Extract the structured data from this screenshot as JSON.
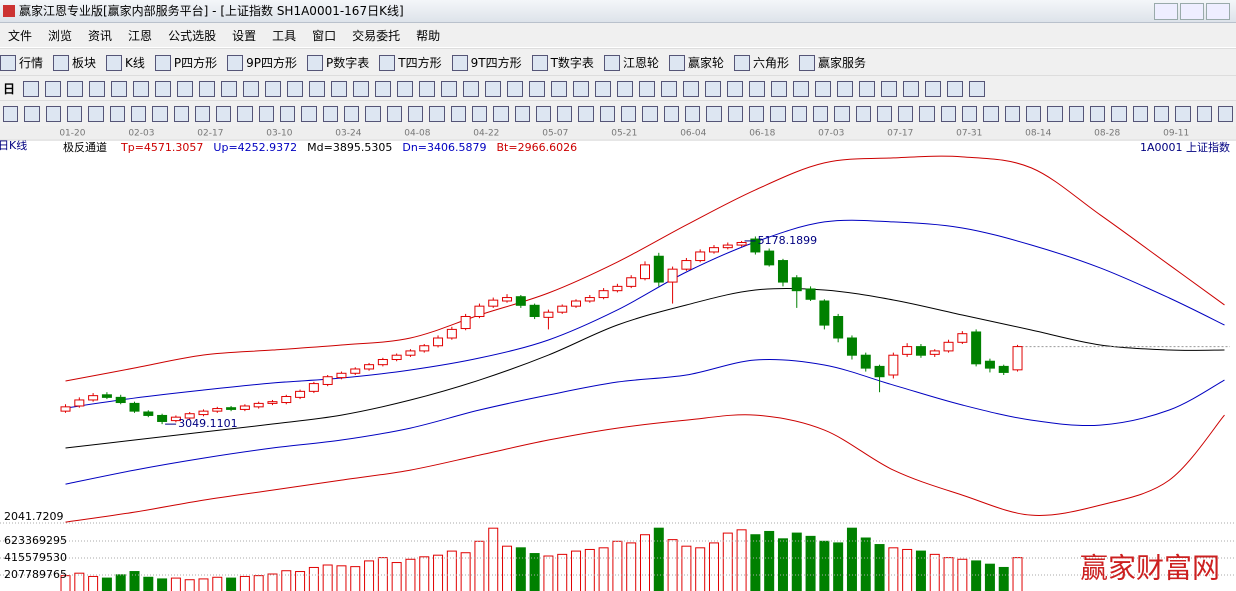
{
  "window": {
    "title": "赢家江恩专业版[赢家内部服务平台] - [上证指数  SH1A0001-167日K线]"
  },
  "menu": [
    "文件",
    "浏览",
    "资讯",
    "江恩",
    "公式选股",
    "设置",
    "工具",
    "窗口",
    "交易委托",
    "帮助"
  ],
  "toolbar": [
    "行情",
    "板块",
    "K线",
    "P四方形",
    "9P四方形",
    "P数字表",
    "T四方形",
    "9T四方形",
    "T数字表",
    "江恩轮",
    "赢家轮",
    "六角形",
    "赢家服务"
  ],
  "period_button": "日",
  "watermark": "赢家财富网",
  "chart_data": {
    "type": "candlestick",
    "period_label": "日K线",
    "indicator": "极反通道",
    "security": "1A0001  上证指数",
    "xlim": [
      -0.4,
      84.4
    ],
    "xticks": [
      {
        "value": 0.5,
        "label": "01-20"
      },
      {
        "value": 5.5,
        "label": "02-03"
      },
      {
        "value": 10.5,
        "label": "02-17"
      },
      {
        "value": 15.5,
        "label": "03-10"
      },
      {
        "value": 20.5,
        "label": "03-24"
      },
      {
        "value": 25.5,
        "label": "04-08"
      },
      {
        "value": 30.5,
        "label": "04-22"
      },
      {
        "value": 35.5,
        "label": "05-07"
      },
      {
        "value": 40.5,
        "label": "05-21"
      },
      {
        "value": 45.5,
        "label": "06-04"
      },
      {
        "value": 50.5,
        "label": "06-18"
      },
      {
        "value": 55.5,
        "label": "07-03"
      },
      {
        "value": 60.5,
        "label": "07-17"
      },
      {
        "value": 65.5,
        "label": "07-31"
      },
      {
        "value": 70.5,
        "label": "08-14"
      },
      {
        "value": 75.5,
        "label": "08-28"
      },
      {
        "value": 80.5,
        "label": "09-11"
      }
    ],
    "ylim": [
      1900,
      6200
    ],
    "up_color": "#e00000",
    "down_color": "#008000",
    "candles": {
      "open": [
        3200,
        3260,
        3330,
        3390,
        3360,
        3290,
        3190,
        3150,
        3090,
        3120,
        3160,
        3200,
        3240,
        3220,
        3250,
        3290,
        3300,
        3360,
        3430,
        3510,
        3590,
        3640,
        3690,
        3740,
        3800,
        3850,
        3900,
        3960,
        4050,
        4160,
        4300,
        4420,
        4480,
        4530,
        4430,
        4290,
        4350,
        4420,
        4480,
        4520,
        4600,
        4650,
        4740,
        5000,
        4700,
        4850,
        4950,
        5050,
        5100,
        5130,
        5200,
        5060,
        4950,
        4750,
        4620,
        4480,
        4300,
        4050,
        3850,
        3720,
        3620,
        3860,
        3950,
        3860,
        3900,
        4000,
        4120,
        3780,
        3720,
        3680
      ],
      "high": [
        3280,
        3360,
        3410,
        3420,
        3390,
        3310,
        3210,
        3170,
        3150,
        3190,
        3220,
        3250,
        3260,
        3280,
        3310,
        3330,
        3390,
        3450,
        3540,
        3620,
        3660,
        3710,
        3760,
        3820,
        3870,
        3920,
        3980,
        4080,
        4180,
        4330,
        4450,
        4520,
        4560,
        4550,
        4450,
        4380,
        4440,
        4500,
        4550,
        4630,
        4680,
        4780,
        4940,
        5040,
        4880,
        4980,
        5080,
        5130,
        5160,
        5178,
        5230,
        5090,
        4970,
        4780,
        4650,
        4500,
        4330,
        4080,
        3880,
        3740,
        3880,
        3990,
        3980,
        3920,
        4030,
        4130,
        4150,
        3810,
        3740,
        3970
      ],
      "low": [
        3180,
        3240,
        3310,
        3340,
        3280,
        3180,
        3130,
        3049,
        3070,
        3100,
        3140,
        3180,
        3200,
        3200,
        3230,
        3270,
        3280,
        3340,
        3410,
        3490,
        3570,
        3620,
        3670,
        3720,
        3780,
        3830,
        3880,
        3940,
        4030,
        4140,
        4280,
        4400,
        4460,
        4400,
        4270,
        4150,
        4330,
        4400,
        4460,
        4500,
        4580,
        4630,
        4720,
        4650,
        4450,
        4830,
        4930,
        5030,
        5080,
        5110,
        5020,
        4880,
        4650,
        4400,
        4480,
        4150,
        4000,
        3800,
        3660,
        3420,
        3580,
        3830,
        3820,
        3830,
        3880,
        3980,
        3720,
        3650,
        3620,
        3660
      ],
      "close": [
        3250,
        3330,
        3380,
        3360,
        3300,
        3200,
        3150,
        3080,
        3130,
        3170,
        3200,
        3230,
        3220,
        3260,
        3290,
        3310,
        3370,
        3430,
        3520,
        3600,
        3640,
        3690,
        3740,
        3800,
        3850,
        3900,
        3960,
        4050,
        4150,
        4300,
        4420,
        4490,
        4520,
        4430,
        4300,
        4350,
        4420,
        4480,
        4520,
        4600,
        4650,
        4750,
        4900,
        4700,
        4850,
        4950,
        5050,
        5100,
        5130,
        5160,
        5050,
        4900,
        4700,
        4600,
        4500,
        4200,
        4050,
        3850,
        3700,
        3600,
        3850,
        3950,
        3850,
        3900,
        4000,
        4100,
        3750,
        3700,
        3650,
        3950
      ]
    },
    "annotations": [
      {
        "x": 49,
        "value": 5178.1899
      },
      {
        "x": 7,
        "value": 3049.1101
      }
    ],
    "band_x": [
      0,
      5,
      10,
      15,
      20,
      25,
      30,
      35,
      40,
      45,
      50,
      55,
      60,
      65,
      70,
      75,
      80,
      84
    ],
    "series": [
      {
        "label": "Tp=4571.3057",
        "color": "#cc0000",
        "values": [
          3550,
          3701,
          3852,
          3910,
          3968,
          4050,
          4317,
          4573,
          4933,
          5364,
          5771,
          6085,
          6143,
          6155,
          6027,
          5480,
          4899,
          4434
        ]
      },
      {
        "label": "Up=4252.9372",
        "color": "#0000c0",
        "values": [
          3236,
          3352,
          3445,
          3527,
          3585,
          3678,
          3817,
          4027,
          4376,
          4817,
          5166,
          5399,
          5399,
          5329,
          5131,
          4864,
          4515,
          4201
        ]
      },
      {
        "label": "Md=3895.5305",
        "color": "#000000",
        "values": [
          2771,
          2864,
          2957,
          3050,
          3154,
          3329,
          3561,
          3852,
          4201,
          4434,
          4608,
          4608,
          4492,
          4317,
          4143,
          3969,
          3910,
          3910
        ]
      },
      {
        "label": "Dn=3406.5879",
        "color": "#0000c0",
        "values": [
          2352,
          2515,
          2654,
          2771,
          2864,
          3003,
          3213,
          3387,
          3538,
          3620,
          3794,
          3736,
          3503,
          3271,
          3096,
          3038,
          3213,
          3561
        ]
      },
      {
        "label": "Bt=2966.6026",
        "color": "#cc0000",
        "values": [
          1910,
          2026,
          2166,
          2282,
          2398,
          2515,
          2689,
          2864,
          3003,
          3096,
          3154,
          2980,
          2515,
          2224,
          1991,
          2108,
          2398,
          3154
        ]
      }
    ],
    "volume": {
      "top_label": "2041.7209",
      "ylim": [
        0,
        880000000
      ],
      "yticks": [
        207789765,
        415579530,
        623369295
      ],
      "values": [
        200000000,
        230000000,
        190000000,
        170000000,
        210000000,
        250000000,
        180000000,
        160000000,
        170000000,
        150000000,
        160000000,
        180000000,
        170000000,
        190000000,
        200000000,
        220000000,
        260000000,
        250000000,
        300000000,
        330000000,
        320000000,
        310000000,
        380000000,
        420000000,
        360000000,
        400000000,
        430000000,
        450000000,
        500000000,
        480000000,
        620000000,
        780000000,
        560000000,
        540000000,
        470000000,
        440000000,
        460000000,
        500000000,
        520000000,
        540000000,
        620000000,
        600000000,
        700000000,
        780000000,
        640000000,
        560000000,
        540000000,
        600000000,
        720000000,
        760000000,
        700000000,
        740000000,
        650000000,
        720000000,
        680000000,
        620000000,
        600000000,
        780000000,
        660000000,
        580000000,
        540000000,
        520000000,
        500000000,
        460000000,
        420000000,
        400000000,
        380000000,
        340000000,
        300000000,
        420000000
      ]
    }
  }
}
